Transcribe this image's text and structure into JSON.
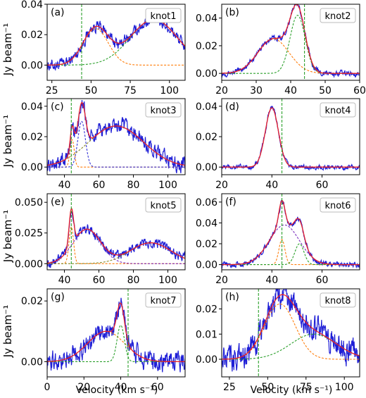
{
  "figure": {
    "ylabel": "Jy beam⁻¹",
    "xlabel": "Velocity (km s⁻¹)"
  },
  "colors": {
    "data": "#1f1fd6",
    "fit_total": "#e8202a",
    "comp_orange": "#ff7f0e",
    "comp_green": "#2ca02c",
    "comp_purple": "#7b2fbf",
    "comp_olive": "#8a8a2a",
    "comp_blue": "#3535d8",
    "vline": "#2ca02c"
  },
  "chart_data": [
    {
      "type": "line",
      "panel": "(a)",
      "knot": "knot1",
      "xlim": [
        22,
        110
      ],
      "ylim": [
        -0.01,
        0.04
      ],
      "xticks": [
        25,
        50,
        75,
        100
      ],
      "yticks": [
        0.0,
        0.02,
        0.04
      ],
      "ytick_labels": [
        "0.00",
        "0.02",
        "0.04"
      ],
      "vline": 44,
      "ylabel": true,
      "xlabel": false,
      "components": [
        {
          "amp": 0.024,
          "mu": 53,
          "sigma": 8,
          "color": "comp_orange"
        },
        {
          "amp": 0.03,
          "mu": 90,
          "sigma": 15,
          "color": "comp_green"
        }
      ],
      "noise": 0.003
    },
    {
      "type": "line",
      "panel": "(b)",
      "knot": "knot2",
      "xlim": [
        20,
        60
      ],
      "ylim": [
        -0.005,
        0.05
      ],
      "xticks": [
        20,
        30,
        40,
        50,
        60
      ],
      "yticks": [
        0.0,
        0.02,
        0.04
      ],
      "ytick_labels": [
        "0.00",
        "0.02",
        "0.04"
      ],
      "vline": 44,
      "ylabel": false,
      "xlabel": false,
      "components": [
        {
          "amp": 0.025,
          "mu": 35,
          "sigma": 4.5,
          "color": "comp_orange"
        },
        {
          "amp": 0.042,
          "mu": 42,
          "sigma": 2.2,
          "color": "comp_green"
        }
      ],
      "noise": 0.0015
    },
    {
      "type": "line",
      "panel": "(c)",
      "knot": "knot3",
      "xlim": [
        30,
        110
      ],
      "ylim": [
        -0.005,
        0.045
      ],
      "xticks": [
        40,
        60,
        80,
        100
      ],
      "yticks": [
        0.0,
        0.02,
        0.04
      ],
      "ytick_labels": [
        "0.00",
        "0.02",
        "0.04"
      ],
      "vline": 44,
      "ylabel": true,
      "xlabel": false,
      "components": [
        {
          "amp": 0.018,
          "mu": 44.5,
          "sigma": 1.2,
          "color": "comp_orange"
        },
        {
          "amp": 0.03,
          "mu": 50,
          "sigma": 2.2,
          "color": "comp_blue"
        },
        {
          "amp": 0.027,
          "mu": 70,
          "sigma": 16,
          "color": "comp_olive"
        }
      ],
      "noise": 0.004
    },
    {
      "type": "line",
      "panel": "(d)",
      "knot": "knot4",
      "xlim": [
        20,
        75
      ],
      "ylim": [
        -0.005,
        0.045
      ],
      "xticks": [
        20,
        40,
        60
      ],
      "yticks": [
        0.0,
        0.02,
        0.04
      ],
      "ytick_labels": [
        "0.00",
        "0.02",
        "0.04"
      ],
      "vline": 44,
      "ylabel": false,
      "xlabel": false,
      "components": [
        {
          "amp": 0.039,
          "mu": 40,
          "sigma": 2.6,
          "color": "comp_blue"
        }
      ],
      "noise": 0.0012
    },
    {
      "type": "line",
      "panel": "(e)",
      "knot": "knot5",
      "xlim": [
        30,
        110
      ],
      "ylim": [
        -0.005,
        0.057
      ],
      "xticks": [
        40,
        60,
        80,
        100
      ],
      "yticks": [
        0.0,
        0.025,
        0.05
      ],
      "ytick_labels": [
        "0.000",
        "0.025",
        "0.050"
      ],
      "vline": 44,
      "ylabel": true,
      "xlabel": false,
      "components": [
        {
          "amp": 0.03,
          "mu": 44,
          "sigma": 1.3,
          "color": "comp_orange"
        },
        {
          "amp": 0.028,
          "mu": 53,
          "sigma": 8,
          "color": "comp_purple"
        },
        {
          "amp": 0.017,
          "mu": 90,
          "sigma": 12,
          "color": "comp_olive"
        }
      ],
      "noise": 0.003
    },
    {
      "type": "line",
      "panel": "(f)",
      "knot": "knot6",
      "xlim": [
        20,
        75
      ],
      "ylim": [
        -0.005,
        0.068
      ],
      "xticks": [
        20,
        40,
        60
      ],
      "yticks": [
        0.0,
        0.02,
        0.04,
        0.06
      ],
      "ytick_labels": [
        "0.00",
        "0.02",
        "0.04",
        "0.06"
      ],
      "vline": 44,
      "ylabel": false,
      "xlabel": false,
      "components": [
        {
          "amp": 0.038,
          "mu": 45,
          "sigma": 6,
          "color": "comp_purple"
        },
        {
          "amp": 0.024,
          "mu": 44,
          "sigma": 1.2,
          "color": "comp_orange"
        },
        {
          "amp": 0.02,
          "mu": 51,
          "sigma": 1.8,
          "color": "comp_green"
        }
      ],
      "noise": 0.002
    },
    {
      "type": "line",
      "panel": "(g)",
      "knot": "knot7",
      "xlim": [
        0,
        75
      ],
      "ylim": [
        -0.005,
        0.024
      ],
      "xticks": [
        0,
        20,
        40,
        60
      ],
      "yticks": [
        0.0,
        0.02
      ],
      "ytick_labels": [
        "0.00",
        "0.02"
      ],
      "vline": 44,
      "ylabel": true,
      "xlabel": true,
      "components": [
        {
          "amp": 0.01,
          "mu": 32,
          "sigma": 10,
          "color": "comp_orange"
        },
        {
          "amp": 0.012,
          "mu": 40,
          "sigma": 2.0,
          "color": "comp_green"
        }
      ],
      "noise": 0.0025
    },
    {
      "type": "line",
      "panel": "(h)",
      "knot": "knot8",
      "xlim": [
        20,
        110
      ],
      "ylim": [
        -0.007,
        0.028
      ],
      "xticks": [
        25,
        50,
        75,
        100
      ],
      "yticks": [
        0.0,
        0.01,
        0.02
      ],
      "ytick_labels": [
        "0.00",
        "0.01",
        "0.02"
      ],
      "vline": 44,
      "ylabel": false,
      "xlabel": true,
      "components": [
        {
          "amp": 0.022,
          "mu": 58,
          "sigma": 10,
          "color": "comp_orange"
        },
        {
          "amp": 0.01,
          "mu": 80,
          "sigma": 15,
          "color": "comp_green"
        }
      ],
      "noise": 0.004
    }
  ]
}
